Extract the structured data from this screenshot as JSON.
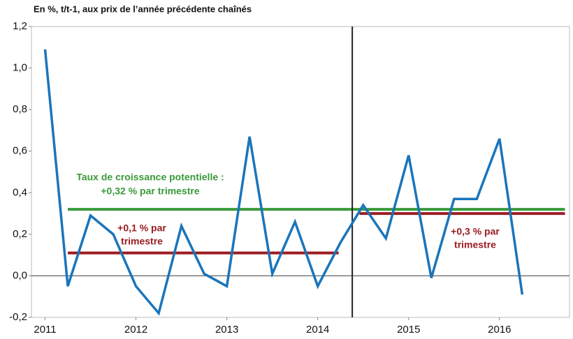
{
  "chart_data": {
    "type": "line",
    "subtitle": "En %, t/t-1, aux prix de l’année précédente chaînés",
    "x": [
      2011,
      2011.25,
      2011.5,
      2011.75,
      2012,
      2012.25,
      2012.5,
      2012.75,
      2013,
      2013.25,
      2013.5,
      2013.75,
      2014,
      2014.25,
      2014.5,
      2014.75,
      2015,
      2015.25,
      2015.5,
      2015.75,
      2016,
      2016.25
    ],
    "values": [
      1.09,
      -0.05,
      0.29,
      0.2,
      -0.05,
      -0.18,
      0.24,
      0.01,
      -0.05,
      0.67,
      0.01,
      0.26,
      -0.05,
      0.16,
      0.34,
      0.18,
      0.58,
      -0.01,
      0.37,
      0.37,
      0.66,
      -0.09
    ],
    "color": "#1a75bb",
    "xlim": [
      2010.85,
      2016.77
    ],
    "xticks": [
      2011,
      2012,
      2013,
      2014,
      2015,
      2016
    ],
    "ylim": [
      -0.2,
      1.2
    ],
    "yticks": [
      {
        "value": -0.2,
        "label": "-0,2"
      },
      {
        "value": 0,
        "label": "0,0"
      },
      {
        "value": 0.2,
        "label": "0,2"
      },
      {
        "value": 0.4,
        "label": "0,4"
      },
      {
        "value": 0.6,
        "label": "0,6"
      },
      {
        "value": 0.8,
        "label": "0,8"
      },
      {
        "value": 1.0,
        "label": "1,0"
      },
      {
        "value": 1.2,
        "label": "1,2"
      }
    ],
    "hlines": [
      {
        "value": 0.32,
        "x": [
          2011.25,
          2016.72
        ],
        "color": "#3a9a3a"
      },
      {
        "value": 0.11,
        "x": [
          2011.25,
          2014.23
        ],
        "color": "#9b1c22"
      },
      {
        "value": 0.3,
        "x": [
          2014.46,
          2016.72
        ],
        "color": "#9b1c22"
      }
    ],
    "vlines": [
      {
        "value": 2014.38,
        "color": "#222"
      }
    ],
    "annotations": [
      {
        "text": "Taux de croissance potentielle :",
        "color": "#3a9a3a"
      },
      {
        "text": "+0,32 % par trimestre",
        "color": "#3a9a3a"
      },
      {
        "text": "+0,1 % par",
        "color": "#9b1c22"
      },
      {
        "text": "trimestre",
        "color": "#9b1c22"
      },
      {
        "text": "+0,3 % par",
        "color": "#9b1c22"
      },
      {
        "text": "trimestre",
        "color": "#9b1c22"
      }
    ]
  }
}
